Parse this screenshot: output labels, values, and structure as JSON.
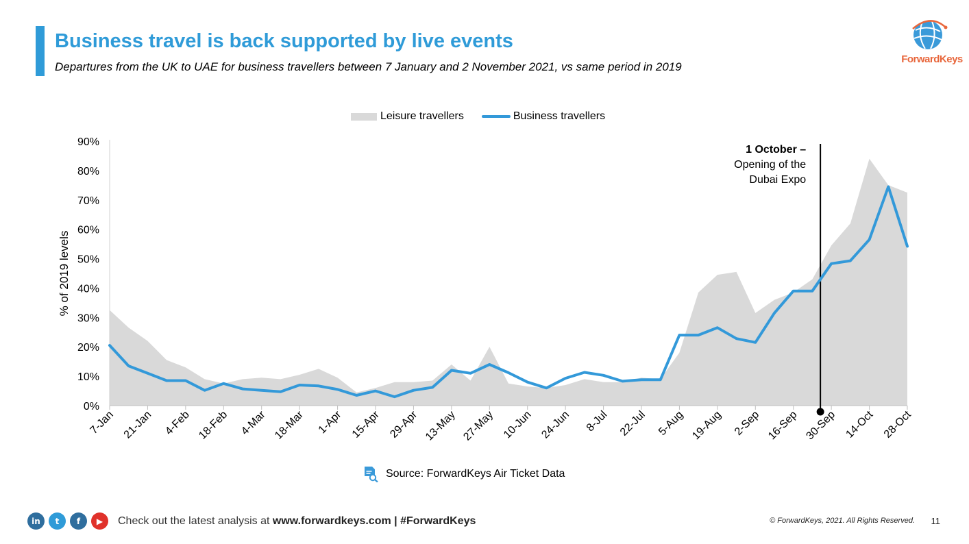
{
  "colors": {
    "accent": "#2f9bd8",
    "leisure": "#d9d9d9",
    "business": "#3399d9",
    "annotation": "#000000"
  },
  "header": {
    "title": "Business travel is back supported by live events",
    "subtitle": "Departures from the UK to UAE for business travellers between 7 January and 2 November 2021, vs same period in 2019"
  },
  "logo": {
    "text": "ForwardKeys"
  },
  "chart_data": {
    "type": "area",
    "title": "",
    "ylabel": "% of 2019 levels",
    "xlabel": "",
    "ylim": [
      0,
      90
    ],
    "yticks": [
      0,
      10,
      20,
      30,
      40,
      50,
      60,
      70,
      80,
      90
    ],
    "ytick_labels": [
      "0%",
      "10%",
      "20%",
      "30%",
      "40%",
      "50%",
      "60%",
      "70%",
      "80%",
      "90%"
    ],
    "x_tick_labels": [
      "7-Jan",
      "21-Jan",
      "4-Feb",
      "18-Feb",
      "4-Mar",
      "18-Mar",
      "1-Apr",
      "15-Apr",
      "29-Apr",
      "13-May",
      "27-May",
      "10-Jun",
      "24-Jun",
      "8-Jul",
      "22-Jul",
      "5-Aug",
      "19-Aug",
      "2-Sep",
      "16-Sep",
      "30-Sep",
      "14-Oct",
      "28-Oct"
    ],
    "grid": false,
    "legend_position": "top-center",
    "series": [
      {
        "name": "Leisure travellers",
        "type": "area",
        "values": [
          32.5,
          26.5,
          22,
          15.5,
          13,
          9,
          7.5,
          9,
          9.5,
          9,
          10.5,
          12.5,
          9.5,
          4.5,
          6,
          8,
          8,
          8.5,
          14,
          8.5,
          20,
          7.5,
          6.5,
          6,
          7,
          9,
          8,
          8,
          9.5,
          9,
          18,
          38.5,
          44.5,
          45.5,
          31.5,
          36,
          38.5,
          43,
          54.5,
          62,
          84,
          75,
          72.5
        ]
      },
      {
        "name": "Business travellers",
        "type": "line",
        "values": [
          20.5,
          13.5,
          11,
          8.5,
          8.5,
          5.2,
          7.5,
          5.7,
          5.2,
          4.7,
          7,
          6.7,
          5.5,
          3.5,
          5,
          3,
          5.2,
          6.2,
          12,
          11,
          14,
          11.2,
          8,
          6,
          9.3,
          11.3,
          10.3,
          8.3,
          8.8,
          8.8,
          24,
          24,
          26.5,
          22.8,
          21.5,
          31.5,
          39,
          39,
          48.3,
          49.3,
          56.5,
          74.5,
          54.2
        ]
      }
    ],
    "annotations": [
      {
        "x_index": 38,
        "title": "1 October –",
        "text_line1": "Opening of the",
        "text_line2": "Dubai Expo"
      }
    ]
  },
  "source": {
    "text": "Source: ForwardKeys Air Ticket Data"
  },
  "footer": {
    "social_icons": [
      {
        "name": "linkedin-icon",
        "glyph": "in",
        "color": "#2f6e9e"
      },
      {
        "name": "twitter-icon",
        "glyph": "t",
        "color": "#2f9bd8"
      },
      {
        "name": "facebook-icon",
        "glyph": "f",
        "color": "#2f6e9e"
      },
      {
        "name": "youtube-icon",
        "glyph": "▶",
        "color": "#e0322b"
      }
    ],
    "text_prefix": "Check out the latest analysis at",
    "link": "www.forwardkeys.com",
    "separator": "|",
    "hashtag": "#ForwardKeys",
    "copyright": "© ForwardKeys, 2021. All Rights Reserved.",
    "page_number": "11"
  }
}
